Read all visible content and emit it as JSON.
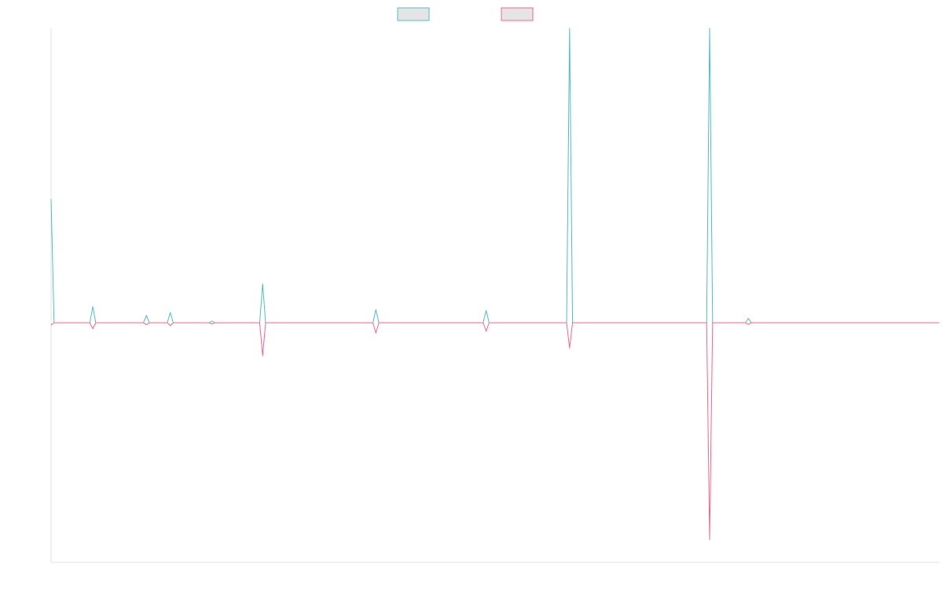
{
  "chart_data": {
    "type": "line",
    "title": "",
    "xlabel": "",
    "ylabel": "",
    "legend_position": "top-center",
    "grid": false,
    "x_count": 299,
    "ylim": [
      -1.0,
      1.0
    ],
    "series": [
      {
        "name": "",
        "color": "#4BC0C0",
        "fill_color": "#e5e5e5",
        "points": [
          [
            0,
            0.42
          ],
          [
            1,
            0.0
          ],
          [
            13,
            0.0
          ],
          [
            14,
            0.055
          ],
          [
            15,
            0.0
          ],
          [
            31,
            0.0
          ],
          [
            32,
            0.025
          ],
          [
            33,
            0.0
          ],
          [
            39,
            0.0
          ],
          [
            40,
            0.035
          ],
          [
            41,
            0.0
          ],
          [
            53,
            0.0
          ],
          [
            54,
            0.006
          ],
          [
            55,
            0.0
          ],
          [
            70,
            0.0
          ],
          [
            71,
            0.132
          ],
          [
            72,
            0.0
          ],
          [
            108,
            0.0
          ],
          [
            109,
            0.045
          ],
          [
            110,
            0.0
          ],
          [
            145,
            0.0
          ],
          [
            146,
            0.042
          ],
          [
            147,
            0.0
          ],
          [
            173,
            0.0
          ],
          [
            174,
            1.088
          ],
          [
            175,
            0.0
          ],
          [
            220,
            0.0
          ],
          [
            221,
            1.105
          ],
          [
            222,
            0.0
          ],
          [
            233,
            0.0
          ],
          [
            234,
            0.015
          ],
          [
            235,
            0.0
          ],
          [
            298,
            0.0
          ]
        ]
      },
      {
        "name": "",
        "color": "#FF6384",
        "fill_color": "#e5e5e5",
        "points": [
          [
            0,
            -0.01
          ],
          [
            1,
            0.0
          ],
          [
            13,
            0.0
          ],
          [
            14,
            -0.025
          ],
          [
            15,
            0.0
          ],
          [
            31,
            0.0
          ],
          [
            32,
            -0.008
          ],
          [
            33,
            0.0
          ],
          [
            39,
            0.0
          ],
          [
            40,
            -0.012
          ],
          [
            41,
            0.0
          ],
          [
            53,
            0.0
          ],
          [
            54,
            -0.004
          ],
          [
            55,
            0.0
          ],
          [
            70,
            0.0
          ],
          [
            71,
            -0.138
          ],
          [
            72,
            0.0
          ],
          [
            108,
            0.0
          ],
          [
            109,
            -0.043
          ],
          [
            110,
            0.0
          ],
          [
            145,
            0.0
          ],
          [
            146,
            -0.035
          ],
          [
            147,
            0.0
          ],
          [
            173,
            0.0
          ],
          [
            174,
            -0.105
          ],
          [
            175,
            0.0
          ],
          [
            220,
            0.0
          ],
          [
            221,
            -0.905
          ],
          [
            222,
            0.0
          ],
          [
            233,
            0.0
          ],
          [
            234,
            -0.006
          ],
          [
            235,
            0.0
          ],
          [
            298,
            0.0
          ]
        ]
      }
    ]
  }
}
